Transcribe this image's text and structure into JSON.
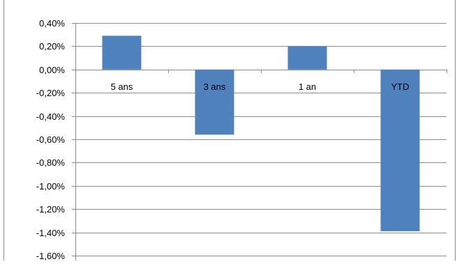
{
  "chart_data": {
    "type": "bar",
    "categories": [
      "5 ans",
      "3 ans",
      "1 an",
      "YTD"
    ],
    "values": [
      0.29,
      -0.56,
      0.2,
      -1.39
    ],
    "y_tick_labels": [
      "0,40%",
      "0,20%",
      "0,00%",
      "-0,20%",
      "-0,40%",
      "-0,60%",
      "-0,80%",
      "-1,00%",
      "-1,20%",
      "-1,40%",
      "-1,60%"
    ],
    "ylim": [
      -1.6,
      0.4
    ],
    "grid": true,
    "legend": "none",
    "bar_color": "#4f81bd",
    "grid_color": "#8c8c8c",
    "border_color": "#8c8c8c"
  }
}
